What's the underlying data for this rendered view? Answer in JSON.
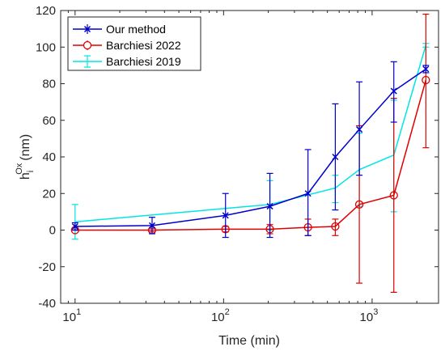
{
  "chart_data": {
    "type": "line",
    "xscale": "log",
    "xlabel": "Time (min)",
    "ylabel_main": "h",
    "ylabel_sup": "Ox",
    "ylabel_sub": "i",
    "ylabel_units": "(nm)",
    "xlim": [
      8,
      2800
    ],
    "ylim": [
      -40,
      120
    ],
    "yticks": [
      -40,
      -20,
      0,
      20,
      40,
      60,
      80,
      100,
      120
    ],
    "xticks": [
      {
        "value": 10,
        "base": "10",
        "exp": "1"
      },
      {
        "value": 100,
        "base": "10",
        "exp": "2"
      },
      {
        "value": 1000,
        "base": "10",
        "exp": "3"
      }
    ],
    "grid": false,
    "legend_position": "top-left",
    "series": [
      {
        "name": "Our method",
        "color": "#0000cc",
        "marker": "x",
        "points": [
          {
            "x": 10,
            "y": 2,
            "lo": 0,
            "hi": 4
          },
          {
            "x": 33,
            "y": 2.5,
            "lo": -2,
            "hi": 7
          },
          {
            "x": 103,
            "y": 8,
            "lo": -4,
            "hi": 20
          },
          {
            "x": 205,
            "y": 13,
            "lo": -4,
            "hi": 31
          },
          {
            "x": 370,
            "y": 20,
            "lo": -3,
            "hi": 44
          },
          {
            "x": 565,
            "y": 40,
            "lo": 11,
            "hi": 69
          },
          {
            "x": 820,
            "y": 55,
            "lo": 30,
            "hi": 81
          },
          {
            "x": 1400,
            "y": 76,
            "lo": 59,
            "hi": 92
          },
          {
            "x": 2300,
            "y": 88,
            "lo": 86,
            "hi": 90
          }
        ]
      },
      {
        "name": "Barchiesi 2022",
        "color": "#e00000",
        "marker": "o",
        "points": [
          {
            "x": 10,
            "y": 0,
            "lo": 0,
            "hi": 0
          },
          {
            "x": 33,
            "y": 0,
            "lo": -1,
            "hi": 1
          },
          {
            "x": 103,
            "y": 0.5,
            "lo": -1,
            "hi": 2
          },
          {
            "x": 205,
            "y": 0.5,
            "lo": -2,
            "hi": 3
          },
          {
            "x": 370,
            "y": 1.5,
            "lo": -3,
            "hi": 6
          },
          {
            "x": 565,
            "y": 2,
            "lo": -3,
            "hi": 6
          },
          {
            "x": 820,
            "y": 14,
            "lo": -29,
            "hi": 57
          },
          {
            "x": 1400,
            "y": 19,
            "lo": -34,
            "hi": 72
          },
          {
            "x": 2300,
            "y": 82,
            "lo": 45,
            "hi": 118
          }
        ]
      },
      {
        "name": "Barchiesi 2019",
        "color": "#00e5e5",
        "marker": "none",
        "points": [
          {
            "x": 10,
            "y": 4.5,
            "lo": -5,
            "hi": 14
          },
          {
            "x": 205,
            "y": 14,
            "lo": 0,
            "hi": 27
          },
          {
            "x": 565,
            "y": 23,
            "lo": 15,
            "hi": 30
          },
          {
            "x": 820,
            "y": 33,
            "lo": 13,
            "hi": 53
          },
          {
            "x": 1400,
            "y": 41,
            "lo": 10,
            "hi": 71
          },
          {
            "x": 2300,
            "y": 101,
            "lo": 100,
            "hi": 102
          }
        ]
      }
    ]
  }
}
